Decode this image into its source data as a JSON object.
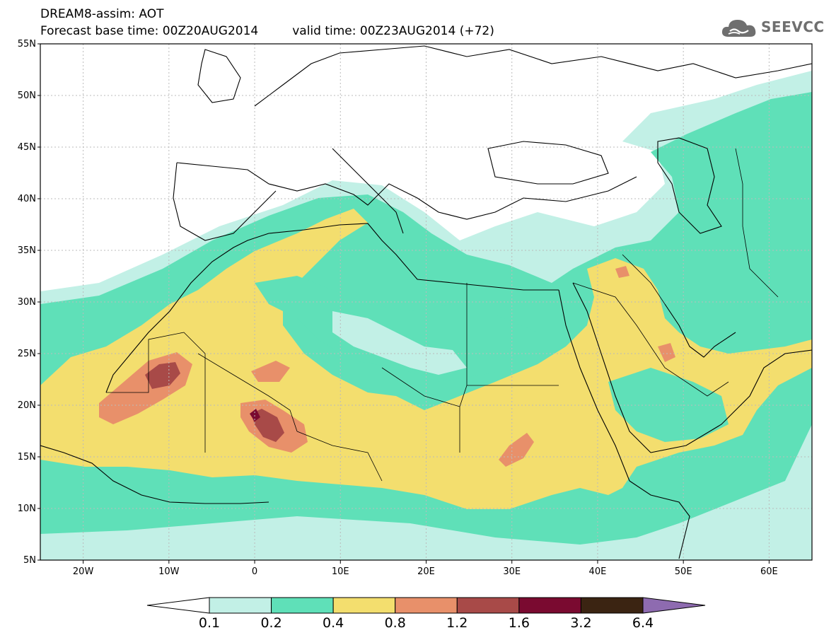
{
  "header": {
    "title": "DREAM8-assim: AOT",
    "base_time": "Forecast base time: 00Z20AUG2014",
    "valid_time": "valid time: 00Z23AUG2014 (+72)"
  },
  "logo": {
    "text": "SEEVCCC",
    "icon": "cloud-icon"
  },
  "colorbar": {
    "colors": [
      "#ffffff",
      "#c2f0e6",
      "#5fe0b8",
      "#f3de6e",
      "#e8906a",
      "#a84a48",
      "#7a0a30",
      "#3b2412",
      "#8e6bb0"
    ],
    "labels": [
      "0.1",
      "0.2",
      "0.4",
      "0.8",
      "1.2",
      "1.6",
      "3.2",
      "6.4"
    ]
  },
  "map": {
    "extent": {
      "lon_min": -25,
      "lon_max": 65,
      "lat_min": 5,
      "lat_max": 55
    },
    "lat_labels": [
      {
        "lat": 55,
        "text": "55N"
      },
      {
        "lat": 50,
        "text": "50N"
      },
      {
        "lat": 45,
        "text": "45N"
      },
      {
        "lat": 40,
        "text": "40N"
      },
      {
        "lat": 35,
        "text": "35N"
      },
      {
        "lat": 30,
        "text": "30N"
      },
      {
        "lat": 25,
        "text": "25N"
      },
      {
        "lat": 20,
        "text": "20N"
      },
      {
        "lat": 15,
        "text": "15N"
      },
      {
        "lat": 10,
        "text": "10N"
      },
      {
        "lat": 5,
        "text": "5N"
      }
    ],
    "lon_labels": [
      {
        "lon": -20,
        "text": "20W"
      },
      {
        "lon": -10,
        "text": "10W"
      },
      {
        "lon": 0,
        "text": "0"
      },
      {
        "lon": 10,
        "text": "10E"
      },
      {
        "lon": 20,
        "text": "20E"
      },
      {
        "lon": 30,
        "text": "30E"
      },
      {
        "lon": 40,
        "text": "40E"
      },
      {
        "lon": 50,
        "text": "50E"
      },
      {
        "lon": 60,
        "text": "60E"
      }
    ],
    "gridlines": true
  }
}
